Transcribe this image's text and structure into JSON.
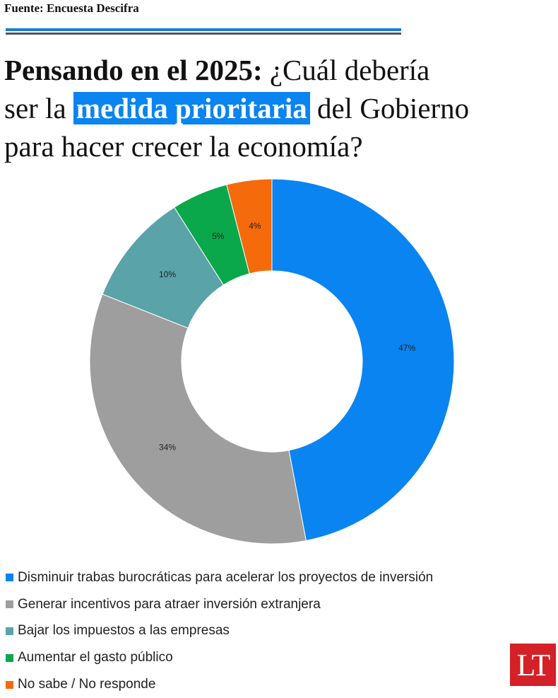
{
  "chart_data": {
    "type": "donut",
    "source": "Fuente: Encuesta Descifra",
    "title_parts": [
      "Pensando en el 2025:",
      "¿Cuál debería",
      "ser la",
      "medida prioritaria",
      "del Gobierno",
      "para hacer crecer la economía?"
    ],
    "categories": [
      "Disminuir trabas burocráticas para acelerar los proyectos de inversión",
      "Generar incentivos para atraer inversión extranjera",
      "Bajar los impuestos a las empresas",
      "Aumentar el gasto público",
      "No sabe / No responde"
    ],
    "values": [
      47,
      34,
      10,
      5,
      4
    ],
    "value_labels": [
      "47%",
      "34%",
      "10%",
      "5%",
      "4%"
    ],
    "colors": [
      "#0a84f0",
      "#9e9e9e",
      "#5aa3a8",
      "#0aa84a",
      "#f56a0a"
    ],
    "logo": "LT"
  }
}
